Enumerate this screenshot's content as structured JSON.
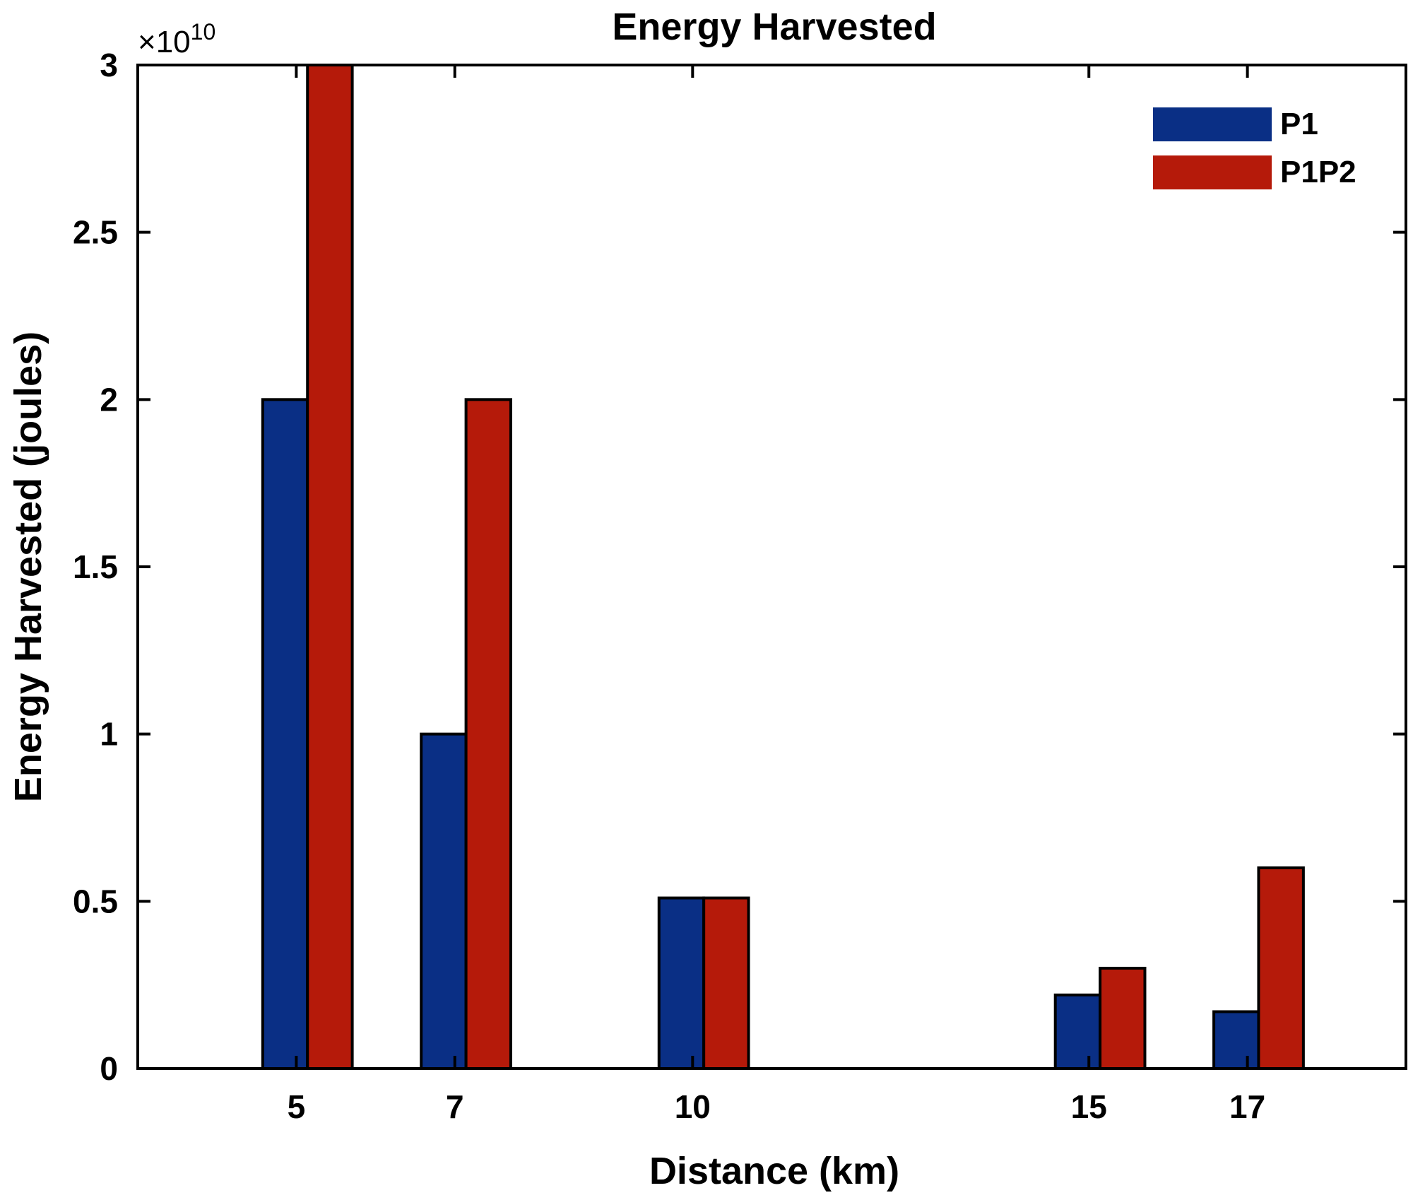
{
  "chart_data": {
    "type": "bar",
    "title": "Energy Harvested",
    "xlabel": "Distance (km)",
    "ylabel": "Energy Harvested (joules)",
    "y_multiplier": "×10",
    "y_exponent": "10",
    "x_range": [
      3,
      19
    ],
    "ylim": [
      0,
      3
    ],
    "y_ticks": [
      0,
      0.5,
      1,
      1.5,
      2,
      2.5,
      3
    ],
    "y_tick_labels": [
      "0",
      "0.5",
      "1",
      "1.5",
      "2",
      "2.5",
      "3"
    ],
    "categories": [
      5,
      7,
      10,
      15,
      17
    ],
    "category_labels": [
      "5",
      "7",
      "10",
      "15",
      "17"
    ],
    "series": [
      {
        "name": "P1",
        "color": "#0a2f85",
        "values": [
          2.0,
          1.0,
          0.51,
          0.22,
          0.17
        ]
      },
      {
        "name": "P1P2",
        "color": "#b51a0a",
        "values": [
          3.0,
          2.0,
          0.51,
          0.3,
          0.6
        ]
      }
    ],
    "legend_position": "top-right",
    "grid": false
  }
}
